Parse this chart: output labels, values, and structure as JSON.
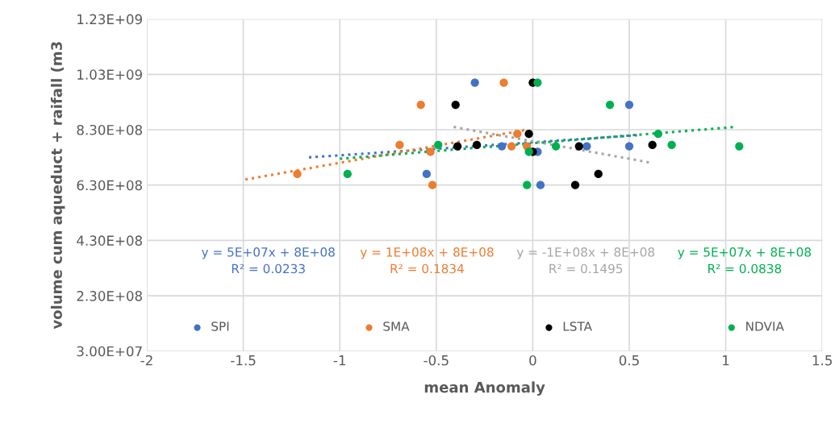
{
  "chart_data": {
    "type": "scatter",
    "xlabel": "mean Anomaly",
    "ylabel": "volume cum aqueduct + raifall (m3",
    "xlim": [
      -2,
      1.5
    ],
    "xticks": [
      -2,
      -1.5,
      -1,
      -0.5,
      0,
      0.5,
      1,
      1.5
    ],
    "ylim": [
      30000000,
      1230000000
    ],
    "yticks": [
      {
        "value": 30000000,
        "label": "3.00E+07"
      },
      {
        "value": 230000000,
        "label": "2.30E+08"
      },
      {
        "value": 430000000,
        "label": "4.30E+08"
      },
      {
        "value": 630000000,
        "label": "6.30E+08"
      },
      {
        "value": 830000000,
        "label": "8.30E+08"
      },
      {
        "value": 1030000000,
        "label": "1.03E+09"
      },
      {
        "value": 1230000000,
        "label": "1.23E+09"
      }
    ],
    "grid": true,
    "legend": "bottom",
    "marker": "circle",
    "series": [
      {
        "name": "SPI",
        "color": "#4472c4",
        "x": [
          -0.3,
          0.5,
          -0.55,
          0.04,
          -0.16,
          0.28,
          0.5,
          0.025
        ],
        "values": [
          1000000000.0,
          920000000.0,
          670000000.0,
          630000000.0,
          770000000.0,
          770000000.0,
          770000000.0,
          750000000.0
        ]
      },
      {
        "name": "SMA",
        "color": "#ed7d31",
        "x": [
          -1.22,
          -0.69,
          -0.58,
          -0.53,
          -0.52,
          -0.15,
          -0.08,
          -0.11,
          -0.03
        ],
        "values": [
          670000000.0,
          775000000.0,
          920000000.0,
          750000000.0,
          630000000.0,
          1000000000.0,
          815000000.0,
          770000000.0,
          770000000.0
        ]
      },
      {
        "name": "LSTA",
        "color": "#000000",
        "x": [
          -0.4,
          -0.39,
          -0.29,
          -0.02,
          0.0,
          0.0,
          0.24,
          0.62,
          0.34,
          0.22
        ],
        "values": [
          920000000.0,
          770000000.0,
          775000000.0,
          815000000.0,
          1000000000.0,
          750000000.0,
          770000000.0,
          775000000.0,
          670000000.0,
          630000000.0
        ]
      },
      {
        "name": "NDVIA",
        "color": "#00b050",
        "x": [
          -0.96,
          -0.49,
          0.025,
          -0.02,
          -0.03,
          0.12,
          0.4,
          0.65,
          0.72,
          1.07
        ],
        "values": [
          670000000.0,
          775000000.0,
          1000000000.0,
          750000000.0,
          630000000.0,
          770000000.0,
          920000000.0,
          815000000.0,
          775000000.0,
          770000000.0
        ]
      },
      {
        "type": "line",
        "marker": "none",
        "line_style": "dotted",
        "color": "#4472c4",
        "x": [
          -1.16,
          0.54
        ],
        "values": [
          730000000.0,
          810000000.0
        ]
      },
      {
        "type": "line",
        "marker": "none",
        "line_style": "dotted",
        "color": "#ed7d31",
        "x": [
          -1.49,
          -0.03
        ],
        "values": [
          650000000.0,
          830000000.0
        ]
      },
      {
        "type": "line",
        "marker": "none",
        "line_style": "dotted",
        "color": "#a5a5a5",
        "x": [
          -0.41,
          0.62
        ],
        "values": [
          840000000.0,
          710000000.0
        ]
      },
      {
        "type": "line",
        "marker": "none",
        "line_style": "dotted",
        "color": "#00b050",
        "x": [
          -1.0,
          1.05
        ],
        "values": [
          725000000.0,
          840000000.0
        ]
      }
    ],
    "annotations": [
      "y = 5E+07x + 8E+08\nR² = 0.0233",
      "y = 1E+08x + 8E+08\nR² = 0.1834",
      "y = -1E+08x + 8E+08\nR² = 0.1495",
      "y = 5E+07x + 8E+08\nR² = 0.0838"
    ]
  }
}
